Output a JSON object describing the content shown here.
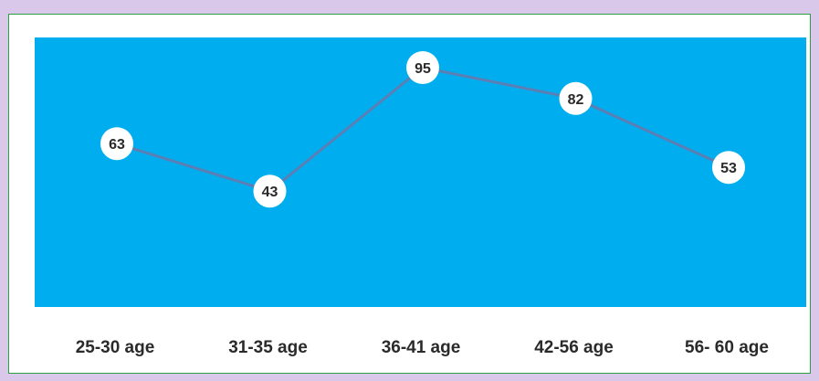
{
  "chart_data": {
    "type": "line",
    "categories": [
      "25-30 age",
      "31-35 age",
      "36-41 age",
      "42-56 age",
      "56- 60 age"
    ],
    "series": [
      {
        "values": [
          63,
          43,
          95,
          82,
          53
        ]
      }
    ],
    "value_labels": [
      "63",
      "43",
      "95",
      "82",
      "53"
    ],
    "ylim": [
      0,
      100
    ],
    "grid": false,
    "legend": "none",
    "colors": {
      "plot_background": "#00aeef",
      "line": "#5b7fb5",
      "marker_fill": "#ffffff",
      "page_background": "#d9c8ea",
      "frame_border": "#2e9e43"
    }
  }
}
